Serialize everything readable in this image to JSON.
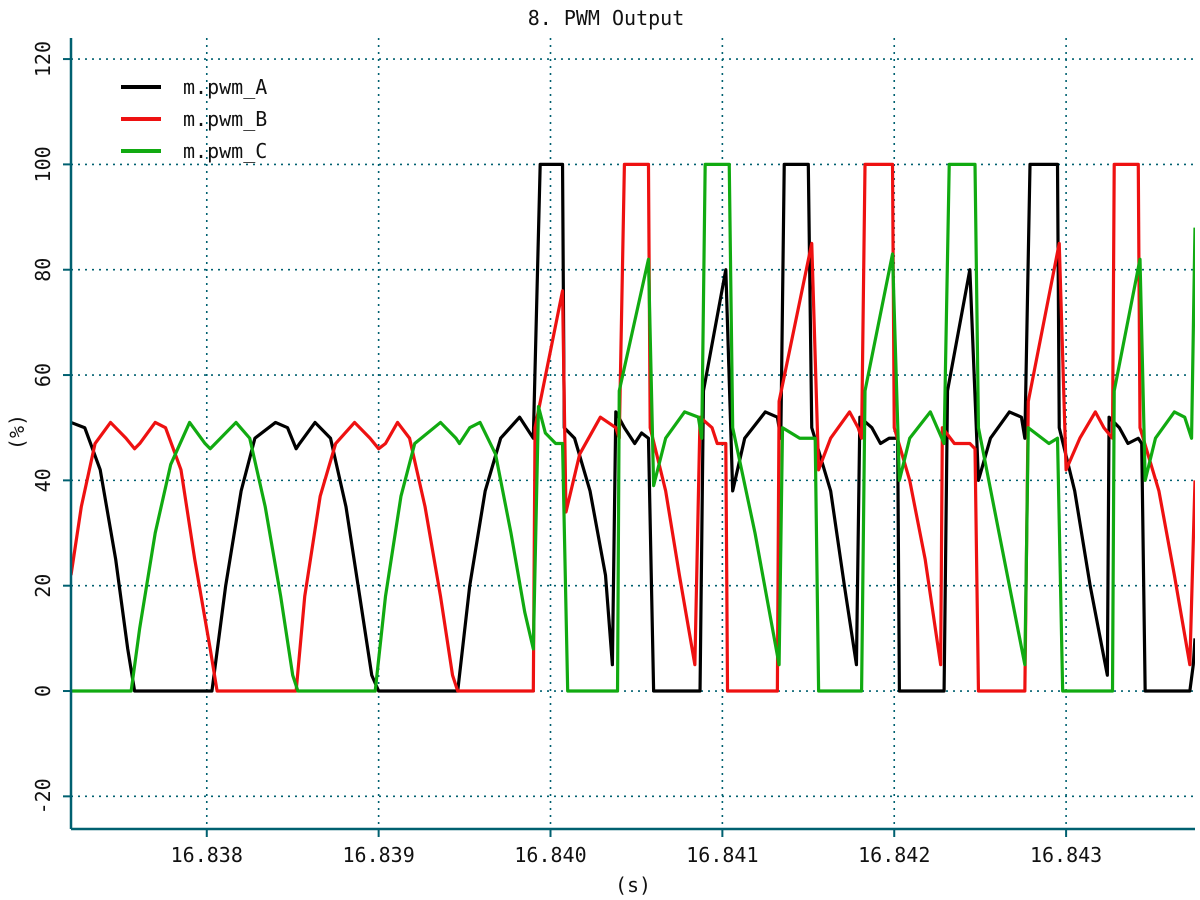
{
  "chart_data": {
    "type": "line",
    "title": "8. PWM Output",
    "x_label": "(s)",
    "y_label": "(%)",
    "xlim": [
      16.83721,
      16.84375
    ],
    "ylim": [
      -26.2,
      124
    ],
    "xticks": [
      16.838,
      16.839,
      {
        "value": 16.84,
        "label": "16.840"
      },
      16.841,
      16.842,
      16.843
    ],
    "yticks": [
      -20,
      0,
      20,
      40,
      60,
      80,
      100,
      120
    ],
    "grid": true,
    "legend": "upper left",
    "series": [
      {
        "name": "m.pwm_A",
        "color": "#000000",
        "x": [
          16.83721,
          16.83729,
          16.83738,
          16.83747,
          16.83754,
          16.83758,
          16.83803,
          16.83811,
          16.8382,
          16.83828,
          16.8384,
          16.83847,
          16.83852,
          16.83854,
          16.83863,
          16.83872,
          16.83881,
          16.83889,
          16.83896,
          16.839,
          16.83946,
          16.83953,
          16.83962,
          16.83971,
          16.83982,
          16.83988,
          16.8399,
          16.83994,
          16.84007,
          16.84008,
          16.84014,
          16.84023,
          16.84032,
          16.84036,
          16.84038,
          16.84043,
          16.84049,
          16.84053,
          16.84057,
          16.8406,
          16.84087,
          16.84089,
          16.84102,
          16.84106,
          16.84113,
          16.84125,
          16.84132,
          16.84134,
          16.84136,
          16.8415,
          16.84152,
          16.84163,
          16.84171,
          16.84178,
          16.8418,
          16.84187,
          16.84192,
          16.84197,
          16.84202,
          16.84203,
          16.84229,
          16.84231,
          16.84244,
          16.84249,
          16.84256,
          16.84267,
          16.84274,
          16.84276,
          16.84279,
          16.84295,
          16.84296,
          16.84305,
          16.84314,
          16.84324,
          16.84325,
          16.84331,
          16.84336,
          16.84342,
          16.84344,
          16.84346,
          16.84372,
          16.84374,
          16.84375
        ],
        "values": [
          51,
          50,
          42,
          25,
          8,
          0,
          0,
          20,
          38,
          48,
          51,
          50,
          46,
          47,
          51,
          48,
          35,
          18,
          3,
          0,
          0,
          20,
          38,
          48,
          52,
          49,
          48,
          100,
          100,
          50,
          48,
          38,
          22,
          5,
          53,
          50,
          47,
          49,
          48,
          0,
          0,
          57,
          80,
          38,
          48,
          53,
          52,
          48,
          100,
          100,
          50,
          38,
          20,
          5,
          52,
          50,
          47,
          48,
          48,
          0,
          0,
          57,
          80,
          40,
          48,
          53,
          52,
          48,
          100,
          100,
          50,
          38,
          20,
          3,
          52,
          50,
          47,
          48,
          47,
          0,
          0,
          5,
          10
        ]
      },
      {
        "name": "m.pwm_B",
        "color": "#ee1111",
        "x": [
          16.83721,
          16.83727,
          16.83735,
          16.83744,
          16.83753,
          16.83758,
          16.83761,
          16.8377,
          16.83776,
          16.83785,
          16.83793,
          16.83802,
          16.83806,
          16.83852,
          16.83857,
          16.83866,
          16.83875,
          16.83886,
          16.83895,
          16.839,
          16.83904,
          16.83911,
          16.83918,
          16.83927,
          16.83936,
          16.83943,
          16.83946,
          16.8399,
          16.83991,
          16.84007,
          16.84009,
          16.84017,
          16.84029,
          16.84038,
          16.8404,
          16.84043,
          16.84057,
          16.84058,
          16.84067,
          16.84075,
          16.84084,
          16.84087,
          16.84094,
          16.84097,
          16.84102,
          16.84103,
          16.84132,
          16.84133,
          16.84152,
          16.84156,
          16.84163,
          16.84174,
          16.84179,
          16.84181,
          16.84183,
          16.84199,
          16.842,
          16.84209,
          16.84218,
          16.84227,
          16.84228,
          16.84235,
          16.84244,
          16.84247,
          16.84249,
          16.84276,
          16.84278,
          16.84296,
          16.843,
          16.84308,
          16.84317,
          16.84322,
          16.84327,
          16.84328,
          16.84342,
          16.84343,
          16.84354,
          16.84363,
          16.84372,
          16.84375
        ],
        "values": [
          22,
          35,
          47,
          51,
          48,
          46,
          47,
          51,
          50,
          42,
          25,
          8,
          0,
          0,
          18,
          37,
          47,
          51,
          48,
          46,
          47,
          51,
          48,
          35,
          18,
          3,
          0,
          0,
          50,
          76,
          34,
          45,
          52,
          50,
          48,
          100,
          100,
          50,
          38,
          22,
          5,
          52,
          50,
          47,
          47,
          0,
          0,
          55,
          85,
          42,
          48,
          53,
          50,
          48,
          100,
          100,
          50,
          40,
          25,
          5,
          50,
          47,
          47,
          46,
          0,
          0,
          55,
          85,
          42,
          48,
          53,
          50,
          48,
          100,
          100,
          50,
          38,
          22,
          5,
          40
        ]
      },
      {
        "name": "m.pwm_C",
        "color": "#11aa11",
        "x": [
          16.83721,
          16.83756,
          16.83761,
          16.8377,
          16.83779,
          16.8379,
          16.83799,
          16.83802,
          16.83805,
          16.83817,
          16.83825,
          16.83834,
          16.83843,
          16.8385,
          16.83853,
          16.83898,
          16.83904,
          16.83913,
          16.83921,
          16.83936,
          16.83945,
          16.83947,
          16.83953,
          16.83959,
          16.83968,
          16.83977,
          16.83985,
          16.8399,
          16.83993,
          16.83997,
          16.84003,
          16.84007,
          16.8401,
          16.84039,
          16.8404,
          16.84057,
          16.8406,
          16.84067,
          16.84078,
          16.84086,
          16.84088,
          16.8409,
          16.84104,
          16.84106,
          16.84119,
          16.84133,
          16.84135,
          16.84145,
          16.84154,
          16.84156,
          16.84181,
          16.84183,
          16.84199,
          16.84203,
          16.84209,
          16.84221,
          16.84229,
          16.84232,
          16.84247,
          16.84249,
          16.84261,
          16.84276,
          16.84278,
          16.8429,
          16.84295,
          16.84298,
          16.84327,
          16.84328,
          16.84343,
          16.84346,
          16.84352,
          16.84363,
          16.84369,
          16.84373,
          16.84375
        ],
        "values": [
          0,
          0,
          12,
          30,
          43,
          51,
          47,
          46,
          47,
          51,
          48,
          35,
          18,
          3,
          0,
          0,
          18,
          37,
          47,
          51,
          48,
          47,
          50,
          51,
          45,
          30,
          15,
          8,
          54,
          49,
          47,
          47,
          0,
          0,
          57,
          82,
          39,
          48,
          53,
          52,
          48,
          100,
          100,
          50,
          30,
          5,
          50,
          48,
          48,
          0,
          0,
          57,
          83,
          40,
          48,
          53,
          47,
          100,
          100,
          50,
          30,
          5,
          50,
          47,
          48,
          0,
          0,
          57,
          82,
          40,
          48,
          53,
          52,
          48,
          88
        ]
      }
    ]
  }
}
